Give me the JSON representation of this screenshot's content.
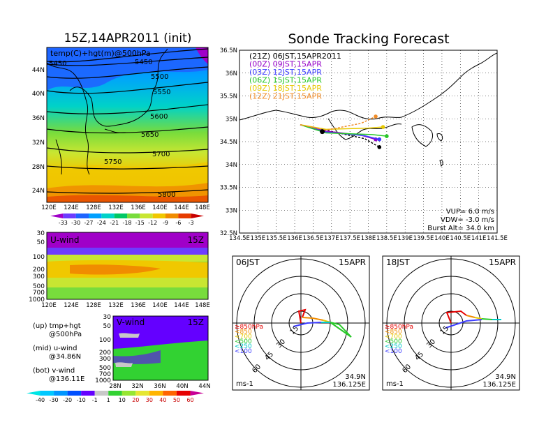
{
  "map_panel": {
    "title": "15Z,14APR2011 (init)",
    "subtitle": "temp(C)+hgt(m)@500hPa",
    "lat_labels": [
      "44N",
      "40N",
      "36N",
      "32N",
      "28N",
      "24N"
    ],
    "lon_labels": [
      "120E",
      "124E",
      "128E",
      "132E",
      "136E",
      "140E",
      "144E",
      "148E"
    ],
    "contours": [
      "5450",
      "5450",
      "5500",
      "5550",
      "5600",
      "5650",
      "5700",
      "5750",
      "5800"
    ],
    "colorbar_labels": [
      "-33",
      "-30",
      "-27",
      "-24",
      "-21",
      "-18",
      "-15",
      "-12",
      "-9",
      "-6",
      "-3"
    ],
    "colorbar_colors": [
      "#a000c8",
      "#6e3cff",
      "#1e64ff",
      "#00a0ff",
      "#00d2c8",
      "#00c864",
      "#78dc3c",
      "#c8e632",
      "#f0c800",
      "#f08c00",
      "#e63c00",
      "#c80000"
    ]
  },
  "uwind_panel": {
    "label": "U-wind",
    "time": "15Z",
    "levels": [
      "30",
      "50",
      "100",
      "200",
      "300",
      "500",
      "700",
      "1000"
    ],
    "lon_labels": [
      "120E",
      "124E",
      "128E",
      "132E",
      "136E",
      "140E",
      "144E",
      "148E"
    ]
  },
  "vwind_panel": {
    "label": "V-wind",
    "time": "15Z",
    "levels": [
      "30",
      "50",
      "100",
      "200",
      "300",
      "500",
      "700",
      "1000"
    ],
    "lat_labels": [
      "28N",
      "32N",
      "36N",
      "40N",
      "44N"
    ]
  },
  "wind_colorbar": {
    "labels": [
      "-40",
      "-30",
      "-20",
      "-10",
      "-1",
      "1",
      "10",
      "20",
      "30",
      "40",
      "50",
      "60"
    ],
    "colors": [
      "#00e6e6",
      "#00c8ff",
      "#0096ff",
      "#0050ff",
      "#6400ff",
      "#c8c8c8",
      "#32d232",
      "#96e632",
      "#e6e632",
      "#ffb400",
      "#ff6400",
      "#e60000",
      "#c80096"
    ]
  },
  "legend_text": {
    "up": "(up) tmp+hgt",
    "up2": "@500hPa",
    "mid": "(mid) u-wind",
    "mid2": "@34.86N",
    "bot": "(bot) v-wind",
    "bot2": "@136.11E"
  },
  "tracking": {
    "title": "Sonde Tracking Forecast",
    "lat_labels": [
      "36.5N",
      "36N",
      "35.5N",
      "35N",
      "34.5N",
      "34N",
      "33.5N",
      "33N",
      "32.5N"
    ],
    "lon_labels": [
      "134.5E",
      "135E",
      "135.5E",
      "136E",
      "136.5E",
      "137E",
      "137.5E",
      "138E",
      "138.5E",
      "139E",
      "139.5E",
      "140E",
      "140.5E",
      "141E",
      "141.5E"
    ],
    "legend": [
      {
        "text": "(21Z)  06JST,15APR2011",
        "color": "#000000"
      },
      {
        "text": "(00Z)  09JST,15APR",
        "color": "#9600c8"
      },
      {
        "text": "(03Z)  12JST,15APR",
        "color": "#3c3cff"
      },
      {
        "text": "(06Z)  15JST,15APR",
        "color": "#28c828"
      },
      {
        "text": "(09Z)  18JST,15APR",
        "color": "#e6c800"
      },
      {
        "text": "(12Z)  21JST,15APR",
        "color": "#f08c28"
      }
    ],
    "params": [
      "VUP=  6.0  m/s",
      "VDW= -3.0  m/s",
      "Burst Alt=  34.0  km"
    ]
  },
  "hodo_left": {
    "time": "06JST",
    "date": "15APR",
    "unit": "ms-1",
    "lat": "34.9N",
    "lon": "136.125E",
    "rings": [
      "15",
      "30",
      "45",
      "60"
    ],
    "levels": [
      {
        "text": "≥850hPa",
        "color": "#e60000"
      },
      {
        "text": "<850",
        "color": "#f08c00"
      },
      {
        "text": "<700",
        "color": "#e6c800"
      },
      {
        "text": "<500",
        "color": "#28c828"
      },
      {
        "text": "<250",
        "color": "#00c8c8"
      },
      {
        "text": "<100",
        "color": "#3c3cff"
      }
    ]
  },
  "hodo_right": {
    "time": "18JST",
    "date": "15APR",
    "unit": "ms-1",
    "lat": "34.9N",
    "lon": "136.125E",
    "rings": [
      "15",
      "30",
      "45",
      "60"
    ]
  },
  "chart_data": [
    {
      "type": "heatmap",
      "title": "15Z,14APR2011 (init)",
      "subtitle": "temp(C)+hgt(m)@500hPa",
      "x_range": [
        "120E",
        "148E"
      ],
      "y_range": [
        "24N",
        "44N"
      ],
      "contour_values": [
        5450,
        5500,
        5550,
        5600,
        5650,
        5700,
        5750,
        5800
      ]
    },
    {
      "type": "heatmap",
      "title": "U-wind",
      "x_range": [
        "120E",
        "148E"
      ],
      "y_levels": [
        30,
        50,
        100,
        200,
        300,
        500,
        700,
        1000
      ]
    },
    {
      "type": "heatmap",
      "title": "V-wind",
      "x_range": [
        "28N",
        "44N"
      ],
      "y_levels": [
        30,
        50,
        100,
        200,
        300,
        500,
        700,
        1000
      ]
    },
    {
      "type": "line",
      "title": "Sonde Tracking Forecast",
      "xlim": [
        134.5,
        141.5
      ],
      "ylim": [
        32.5,
        36.5
      ],
      "series": [
        {
          "name": "(21Z)  06JST,15APR2011",
          "end": [
            138.3,
            34.38
          ]
        },
        {
          "name": "(00Z)  09JST,15APR",
          "end": [
            138.2,
            34.55
          ]
        },
        {
          "name": "(03Z)  12JST,15APR",
          "end": [
            138.3,
            34.55
          ]
        },
        {
          "name": "(06Z)  15JST,15APR",
          "end": [
            138.5,
            34.62
          ]
        },
        {
          "name": "(09Z)  18JST,15APR",
          "end": [
            138.4,
            34.82
          ]
        },
        {
          "name": "(12Z)  21JST,15APR",
          "end": [
            138.2,
            35.05
          ]
        }
      ]
    }
  ]
}
